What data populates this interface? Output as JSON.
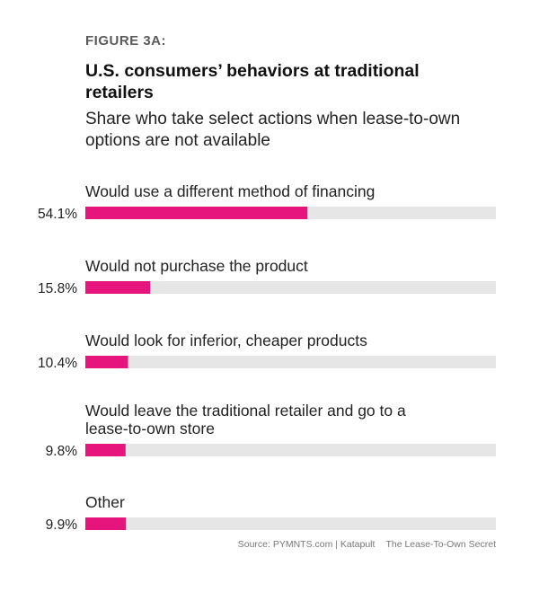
{
  "figure_label": "FIGURE 3A:",
  "title": "U.S. consumers’ behaviors at traditional retailers",
  "subtitle": "Share who take select actions when lease-to-own options are not available",
  "source": {
    "text": "Source: PYMNTS.com | Katapult",
    "report": "The Lease-To-Own Secret"
  },
  "colors": {
    "bar_fill": "#e5157d",
    "bar_track": "#e6e6e6"
  },
  "chart_data": {
    "type": "bar",
    "orientation": "horizontal",
    "xlim": [
      0,
      100
    ],
    "categories": [
      [
        "Would use a different method of financing"
      ],
      [
        "Would not purchase the product"
      ],
      [
        "Would look for inferior, cheaper products"
      ],
      [
        "Would leave the traditional retailer and go to a",
        "lease-to-own store"
      ],
      [
        "Other"
      ]
    ],
    "values": [
      54.1,
      15.8,
      10.4,
      9.8,
      9.9
    ],
    "value_labels": [
      "54.1%",
      "15.8%",
      "10.4%",
      "9.8%",
      "9.9%"
    ]
  }
}
